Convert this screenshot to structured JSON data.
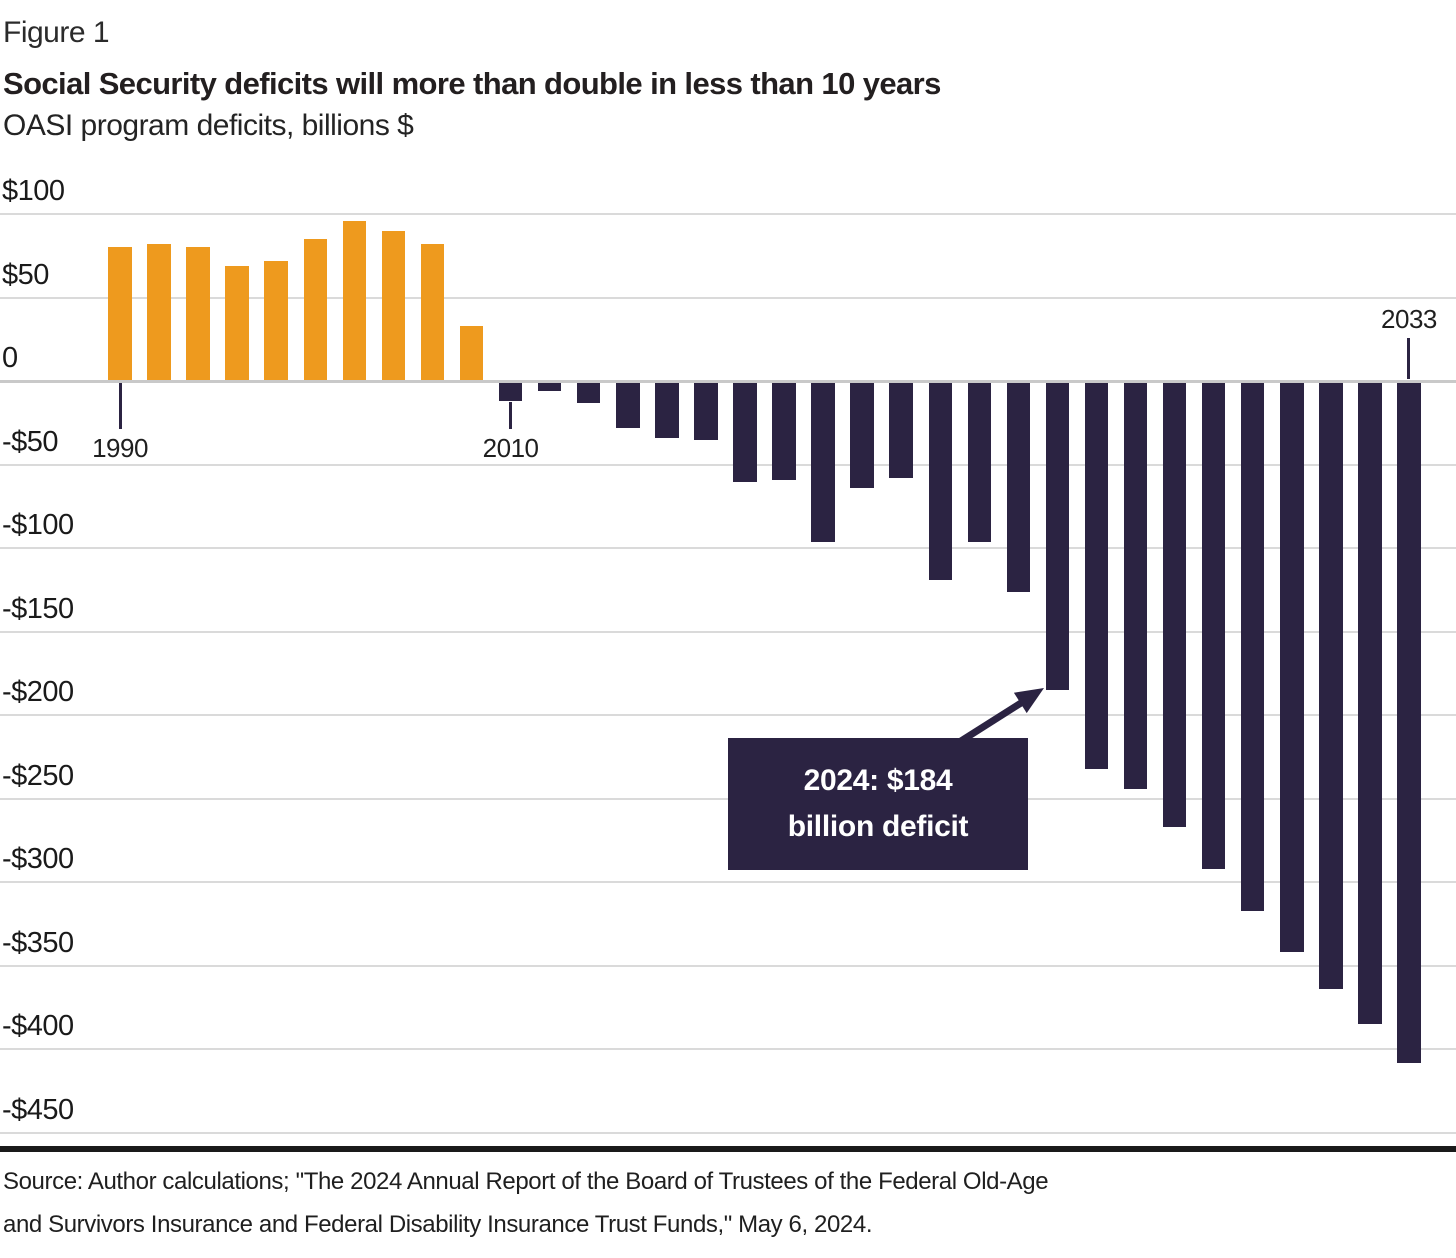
{
  "figure_label": "Figure 1",
  "title": "Social Security deficits will more than double in less than 10 years",
  "subtitle": "OASI program deficits, billions $",
  "colors": {
    "positive_bar": "#ee9a1e",
    "negative_bar": "#2b2342",
    "annotation_bg": "#2b2342",
    "annotation_text": "#ffffff",
    "arrow": "#2b2342",
    "gridline": "#dadada",
    "zero_line": "#c9c9c9",
    "tick_line": "#2b2342",
    "axis_text": "#1a1a1a"
  },
  "chart_data": {
    "type": "bar",
    "title": "Social Security deficits will more than double in less than 10 years",
    "ylabel": "OASI program deficits, billions $",
    "ylim": [
      -450,
      100
    ],
    "grid": "horizontal",
    "y_axis": {
      "ticks": [
        {
          "label": "$100",
          "value": 100
        },
        {
          "label": "$50",
          "value": 50
        },
        {
          "label": "0",
          "value": 0
        },
        {
          "label": "-$50",
          "value": -50
        },
        {
          "label": "-$100",
          "value": -100
        },
        {
          "label": "-$150",
          "value": -150
        },
        {
          "label": "-$200",
          "value": -200
        },
        {
          "label": "-$250",
          "value": -250
        },
        {
          "label": "-$300",
          "value": -300
        },
        {
          "label": "-$350",
          "value": -350
        },
        {
          "label": "-$400",
          "value": -400
        },
        {
          "label": "-$450",
          "value": -450
        }
      ]
    },
    "x_axis": {
      "note": "bars are biennial 1990-2008, annual 2010-2033",
      "ticks": [
        {
          "label": "1990",
          "year": 1990,
          "side": "below"
        },
        {
          "label": "2010",
          "year": 2010,
          "side": "below"
        },
        {
          "label": "2033",
          "year": 2033,
          "side": "above"
        }
      ]
    },
    "bars": [
      {
        "year": 1990,
        "value": 80
      },
      {
        "year": 1992,
        "value": 82
      },
      {
        "year": 1994,
        "value": 80
      },
      {
        "year": 1996,
        "value": 69
      },
      {
        "year": 1998,
        "value": 72
      },
      {
        "year": 2000,
        "value": 85
      },
      {
        "year": 2002,
        "value": 96
      },
      {
        "year": 2004,
        "value": 90
      },
      {
        "year": 2006,
        "value": 82
      },
      {
        "year": 2008,
        "value": 33
      },
      {
        "year": 2010,
        "value": -11
      },
      {
        "year": 2011,
        "value": -5
      },
      {
        "year": 2012,
        "value": -12
      },
      {
        "year": 2013,
        "value": -27
      },
      {
        "year": 2014,
        "value": -33
      },
      {
        "year": 2015,
        "value": -34
      },
      {
        "year": 2016,
        "value": -59
      },
      {
        "year": 2017,
        "value": -58
      },
      {
        "year": 2018,
        "value": -95
      },
      {
        "year": 2019,
        "value": -63
      },
      {
        "year": 2020,
        "value": -57
      },
      {
        "year": 2021,
        "value": -118
      },
      {
        "year": 2022,
        "value": -95
      },
      {
        "year": 2023,
        "value": -125
      },
      {
        "year": 2024,
        "value": -184
      },
      {
        "year": 2025,
        "value": -231
      },
      {
        "year": 2026,
        "value": -243
      },
      {
        "year": 2027,
        "value": -266
      },
      {
        "year": 2028,
        "value": -291
      },
      {
        "year": 2029,
        "value": -316
      },
      {
        "year": 2030,
        "value": -341
      },
      {
        "year": 2031,
        "value": -363
      },
      {
        "year": 2032,
        "value": -384
      },
      {
        "year": 2033,
        "value": -407
      }
    ]
  },
  "annotation": {
    "line1": "2024: $184",
    "line2": "billion deficit",
    "target_year": 2024
  },
  "source": {
    "line1": "Source: Author calculations; \"The 2024 Annual Report of the Board of Trustees of the Federal Old-Age",
    "line2": "and Survivors Insurance and Federal Disability Insurance Trust Funds,\" May 6, 2024."
  }
}
